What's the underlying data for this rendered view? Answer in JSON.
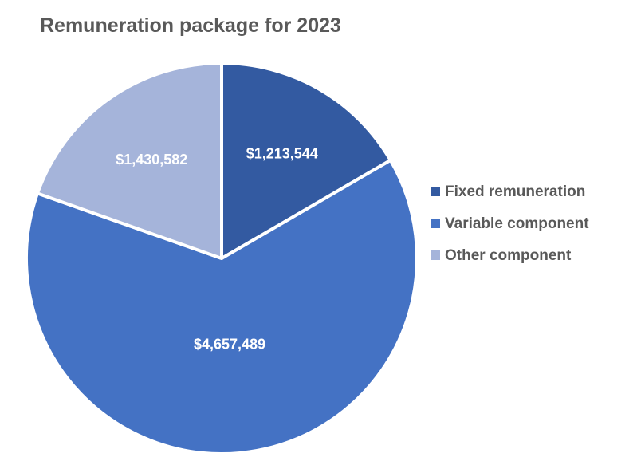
{
  "chart_data": {
    "type": "pie",
    "title": "Remuneration package for 2023",
    "legend_position": "right",
    "slices": [
      {
        "name": "Fixed remuneration",
        "value": 1213544,
        "label": "$1,213,544",
        "color": "#335AA1"
      },
      {
        "name": "Variable component",
        "value": 4657489,
        "label": "$4,657,489",
        "color": "#4472C4"
      },
      {
        "name": "Other component",
        "value": 1430582,
        "label": "$1,430,582",
        "color": "#A5B4DA"
      }
    ]
  }
}
